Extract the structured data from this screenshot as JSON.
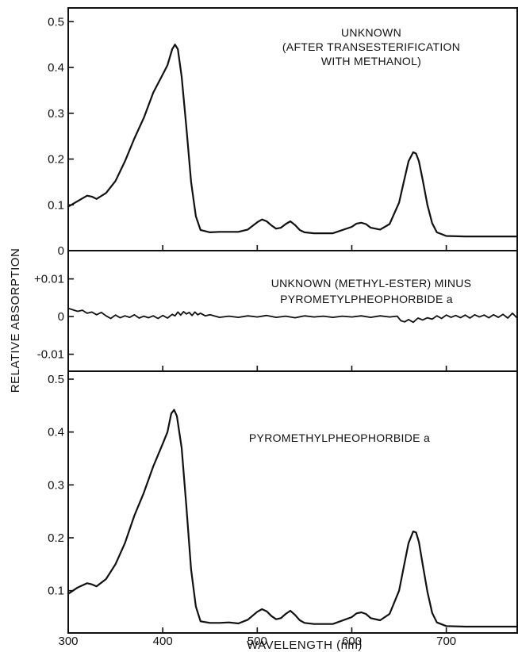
{
  "chart_data": {
    "ylabel": "RELATIVE ABSORPTION",
    "xlabel": "WAVELENGTH (nm)",
    "x_ticks": [
      "300",
      "400",
      "500",
      "600",
      "700"
    ],
    "xlim": [
      300,
      775
    ],
    "panels": [
      {
        "type": "line",
        "annotation": [
          "UNKNOWN",
          "(AFTER TRANSESTERIFICATION",
          "WITH METHANOL)"
        ],
        "ylim": [
          0,
          0.53
        ],
        "y_ticks": [
          {
            "value": 0,
            "label": "0"
          },
          {
            "value": 0.1,
            "label": "0.1"
          },
          {
            "value": 0.2,
            "label": "0.2"
          },
          {
            "value": 0.3,
            "label": "0.3"
          },
          {
            "value": 0.4,
            "label": "0.4"
          },
          {
            "value": 0.5,
            "label": "0.5"
          }
        ],
        "x": [
          300,
          310,
          320,
          325,
          330,
          340,
          350,
          360,
          370,
          380,
          390,
          400,
          405,
          410,
          413,
          416,
          420,
          425,
          430,
          435,
          440,
          450,
          460,
          480,
          490,
          500,
          505,
          510,
          515,
          520,
          525,
          530,
          535,
          540,
          545,
          550,
          560,
          580,
          600,
          605,
          610,
          615,
          620,
          630,
          640,
          650,
          655,
          660,
          665,
          668,
          671,
          675,
          680,
          685,
          690,
          700,
          720,
          740,
          760,
          775
        ],
        "y": [
          0.096,
          0.108,
          0.12,
          0.118,
          0.113,
          0.126,
          0.152,
          0.195,
          0.245,
          0.29,
          0.345,
          0.385,
          0.405,
          0.44,
          0.45,
          0.44,
          0.38,
          0.27,
          0.15,
          0.075,
          0.045,
          0.04,
          0.041,
          0.041,
          0.046,
          0.062,
          0.068,
          0.064,
          0.055,
          0.048,
          0.05,
          0.058,
          0.064,
          0.056,
          0.045,
          0.04,
          0.038,
          0.038,
          0.052,
          0.059,
          0.061,
          0.058,
          0.05,
          0.046,
          0.058,
          0.105,
          0.15,
          0.195,
          0.215,
          0.212,
          0.195,
          0.155,
          0.1,
          0.06,
          0.04,
          0.032,
          0.031,
          0.031,
          0.031,
          0.031
        ]
      },
      {
        "type": "line",
        "annotation": [
          "UNKNOWN (METHYL-ESTER) MINUS",
          "PYROMETYLPHEOPHORBIDE a"
        ],
        "ylim": [
          -0.0145,
          0.0175
        ],
        "y_ticks": [
          {
            "value": 0.01,
            "label": "+0.01"
          },
          {
            "value": 0,
            "label": "0"
          },
          {
            "value": -0.01,
            "label": "-0.01"
          }
        ],
        "x": [
          300,
          305,
          310,
          315,
          320,
          325,
          330,
          335,
          340,
          345,
          350,
          355,
          360,
          365,
          370,
          375,
          380,
          385,
          390,
          395,
          400,
          405,
          410,
          413,
          416,
          419,
          422,
          425,
          428,
          431,
          434,
          437,
          440,
          445,
          450,
          460,
          470,
          480,
          490,
          500,
          510,
          520,
          530,
          540,
          550,
          560,
          570,
          580,
          590,
          600,
          610,
          620,
          630,
          640,
          648,
          652,
          656,
          660,
          665,
          670,
          675,
          680,
          685,
          690,
          695,
          700,
          705,
          710,
          715,
          720,
          725,
          730,
          735,
          740,
          745,
          750,
          755,
          760,
          765,
          770,
          775
        ],
        "y": [
          0.0022,
          0.0018,
          0.0014,
          0.0017,
          0.0009,
          0.0012,
          0.0005,
          0.0011,
          0.0002,
          -0.0005,
          0.0004,
          -0.0003,
          0.0002,
          -0.0002,
          0.0005,
          -0.0004,
          0.0001,
          -0.0003,
          0.0002,
          -0.0005,
          0.0003,
          -0.0004,
          0.0006,
          0.0002,
          0.0012,
          0.0004,
          0.0013,
          0.0007,
          0.0011,
          0.0003,
          0.0012,
          0.0005,
          0.0009,
          0.0002,
          0.0005,
          -0.0002,
          0.0001,
          -0.0002,
          0.0002,
          -0.0001,
          0.0003,
          -0.0002,
          0.0001,
          -0.0003,
          0.0002,
          -0.0001,
          0.0001,
          -0.0002,
          0.0001,
          -0.0001,
          0.0002,
          -0.0002,
          0.0002,
          -0.0001,
          0.0001,
          -0.0011,
          -0.0014,
          -0.0008,
          -0.0015,
          -0.0004,
          -0.0009,
          -0.0003,
          -0.0007,
          0.0002,
          -0.0005,
          0.0004,
          -0.0002,
          0.0003,
          -0.0003,
          0.0004,
          -0.0004,
          0.0005,
          -0.0001,
          0.0004,
          -0.0003,
          0.0005,
          -0.0002,
          0.0006,
          -0.0004,
          0.0009,
          -0.0004
        ]
      },
      {
        "type": "line",
        "annotation": [
          "PYROMETHYLPHEOPHORBIDE a"
        ],
        "ylim": [
          0.02,
          0.515
        ],
        "y_ticks": [
          {
            "value": 0.1,
            "label": "0.1"
          },
          {
            "value": 0.2,
            "label": "0.2"
          },
          {
            "value": 0.3,
            "label": "0.3"
          },
          {
            "value": 0.4,
            "label": "0.4"
          },
          {
            "value": 0.5,
            "label": "0.5"
          }
        ],
        "x": [
          300,
          310,
          320,
          325,
          330,
          340,
          350,
          360,
          370,
          380,
          390,
          400,
          405,
          409,
          412,
          415,
          420,
          425,
          430,
          435,
          440,
          450,
          460,
          470,
          480,
          490,
          500,
          505,
          510,
          515,
          520,
          525,
          530,
          535,
          540,
          545,
          550,
          560,
          580,
          600,
          605,
          610,
          615,
          620,
          630,
          640,
          650,
          655,
          660,
          665,
          668,
          671,
          675,
          680,
          685,
          690,
          700,
          720,
          740,
          760,
          775
        ],
        "y": [
          0.094,
          0.106,
          0.114,
          0.112,
          0.108,
          0.122,
          0.15,
          0.19,
          0.242,
          0.285,
          0.335,
          0.378,
          0.4,
          0.435,
          0.442,
          0.43,
          0.37,
          0.26,
          0.14,
          0.07,
          0.042,
          0.039,
          0.039,
          0.04,
          0.038,
          0.045,
          0.06,
          0.065,
          0.061,
          0.052,
          0.046,
          0.048,
          0.056,
          0.062,
          0.054,
          0.044,
          0.039,
          0.037,
          0.037,
          0.05,
          0.057,
          0.059,
          0.056,
          0.048,
          0.044,
          0.056,
          0.1,
          0.145,
          0.19,
          0.212,
          0.21,
          0.192,
          0.15,
          0.098,
          0.058,
          0.04,
          0.033,
          0.032,
          0.032,
          0.032,
          0.032
        ]
      }
    ]
  }
}
